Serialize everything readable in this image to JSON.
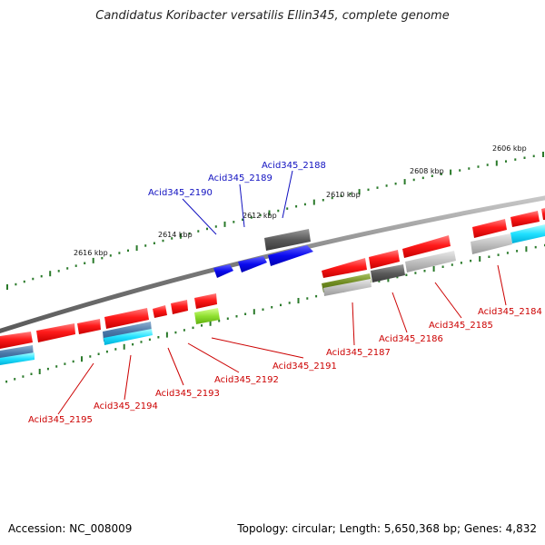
{
  "title": "Candidatus Koribacter versatilis Ellin345, complete genome",
  "footer": {
    "accession": "Accession: NC_008009",
    "summary": "Topology: circular; Length: 5,650,368 bp; Genes: 4,832"
  },
  "scale_labels": [
    "2606 kbp",
    "2608 kbp",
    "2610 kbp",
    "2612 kbp",
    "2614 kbp",
    "2616 kbp"
  ],
  "colors": {
    "backbone": "#8a8a8a",
    "forward_label": "#1010c0",
    "reverse_label": "#cc0000",
    "tick": "#2a7a2a"
  },
  "forward_genes": [
    {
      "label": "Acid345_2188",
      "color": "#1616e8"
    },
    {
      "label": "Acid345_2189",
      "color": "#1616e8"
    },
    {
      "label": "Acid345_2190",
      "color": "#1616e8"
    }
  ],
  "reverse_genes": [
    {
      "label": "Acid345_2184"
    },
    {
      "label": "Acid345_2185"
    },
    {
      "label": "Acid345_2186"
    },
    {
      "label": "Acid345_2187"
    },
    {
      "label": "Acid345_2191"
    },
    {
      "label": "Acid345_2192"
    },
    {
      "label": "Acid345_2193"
    },
    {
      "label": "Acid345_2194"
    },
    {
      "label": "Acid345_2195"
    }
  ]
}
